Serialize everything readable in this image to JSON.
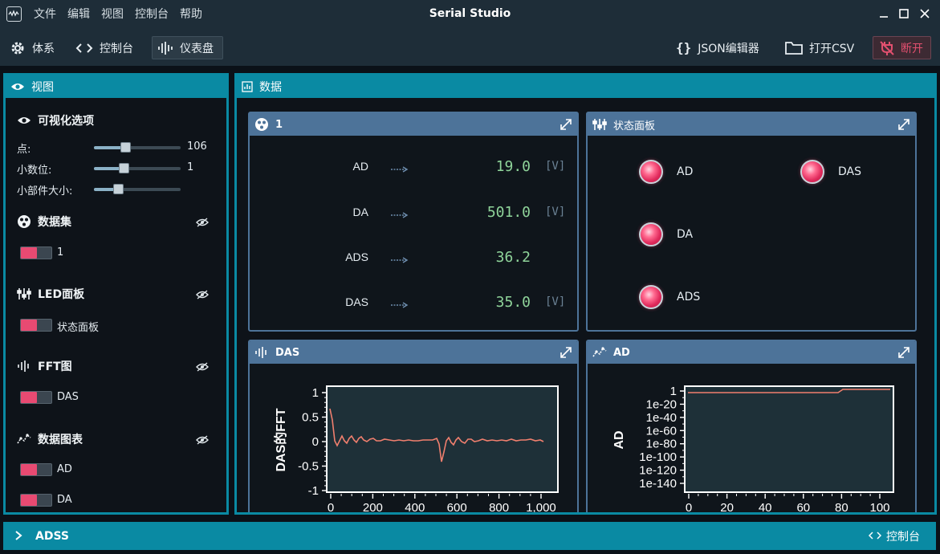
{
  "window": {
    "title": "Serial Studio",
    "menu": [
      "文件",
      "编辑",
      "视图",
      "控制台",
      "帮助"
    ]
  },
  "toolbar": {
    "setup": "体系",
    "console": "控制台",
    "dashboard": "仪表盘",
    "json_editor": "JSON编辑器",
    "open_csv": "打开CSV",
    "disconnect": "断开"
  },
  "view_panel": {
    "title": "视图",
    "options_title": "可视化选项",
    "points_label": "点:",
    "points_value": "106",
    "points_fraction": 0.36,
    "decimals_label": "小数位:",
    "decimals_value": "1",
    "decimals_fraction": 0.34,
    "widget_size_label": "小部件大小:",
    "widget_size_fraction": 0.28,
    "groups": [
      {
        "title": "数据集",
        "icon": "dataset-icon",
        "items": [
          "1"
        ]
      },
      {
        "title": "LED面板",
        "icon": "led-panel-icon",
        "items": [
          "状态面板"
        ]
      },
      {
        "title": "FFT图",
        "icon": "fft-icon",
        "items": [
          "DAS"
        ]
      },
      {
        "title": "数据图表",
        "icon": "plot-icon",
        "items": [
          "AD",
          "DA"
        ]
      }
    ]
  },
  "data_panel": {
    "title": "数据"
  },
  "dataset_widget": {
    "title": "1",
    "rows": [
      {
        "name": "AD",
        "value": "19.0",
        "unit": "[V]"
      },
      {
        "name": "DA",
        "value": "501.0",
        "unit": "[V]"
      },
      {
        "name": "ADS",
        "value": "36.2",
        "unit": ""
      },
      {
        "name": "DAS",
        "value": "35.0",
        "unit": "[V]"
      }
    ]
  },
  "led_widget": {
    "title": "状态面板",
    "leds": [
      "AD",
      "DAS",
      "DA",
      "ADS"
    ]
  },
  "fft_widget": {
    "title": "DAS",
    "ylabel": "DAS的FFT",
    "yticks": [
      "1",
      "0.5",
      "0",
      "-0.5",
      "-1"
    ],
    "xticks": [
      "0",
      "200",
      "400",
      "600",
      "800",
      "1,000"
    ]
  },
  "plot_widget": {
    "title": "AD",
    "ylabel": "AD",
    "yticks": [
      "1",
      "1e-20",
      "1e-40",
      "1e-60",
      "1e-80",
      "1e-100",
      "1e-120",
      "1e-140"
    ],
    "xticks": [
      "0",
      "20",
      "40",
      "60",
      "80",
      "100"
    ]
  },
  "bottombar": {
    "title": "ADSS",
    "console": "控制台"
  },
  "colors": {
    "accent": "#0a8aa3",
    "widget_header": "#4d7399",
    "led": "#ff5a85",
    "value": "#8fd49a",
    "trace": "#f07f6e"
  }
}
